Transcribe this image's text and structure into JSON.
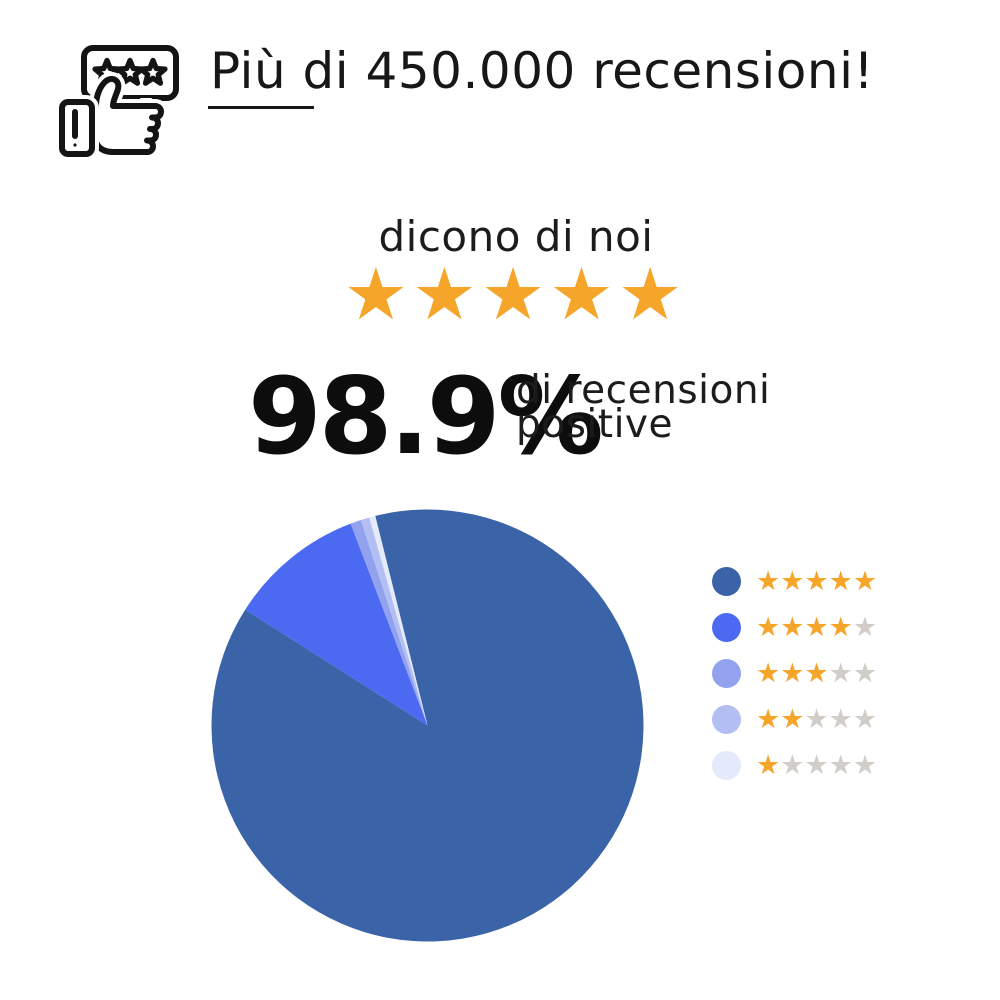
{
  "header": {
    "title": "Più di 450.000 recensioni!"
  },
  "intro": {
    "tagline": "dicono di noi",
    "stars_filled": 5,
    "stars_total": 5
  },
  "stat": {
    "value": "98.9%",
    "label_line1": "di recensioni",
    "label_line2": "positive"
  },
  "chart_data": {
    "type": "pie",
    "title": "",
    "legend_position": "right",
    "start_angle_deg": -14,
    "slices": [
      {
        "stars_filled": 5,
        "stars_total": 5,
        "value": 87.9,
        "color": "#3B63A8"
      },
      {
        "stars_filled": 4,
        "stars_total": 5,
        "value": 10.2,
        "color": "#4C69F2"
      },
      {
        "stars_filled": 3,
        "stars_total": 5,
        "value": 0.8,
        "color": "#93A2EE"
      },
      {
        "stars_filled": 2,
        "stars_total": 5,
        "value": 0.65,
        "color": "#B3BEF2"
      },
      {
        "stars_filled": 1,
        "stars_total": 5,
        "value": 0.45,
        "color": "#E4EAFB"
      }
    ]
  },
  "colors": {
    "star_filled": "#F6A52B",
    "star_empty": "#D1CDC8",
    "text": "#161616"
  },
  "icons": {
    "star_glyph": "★",
    "header_icon": "review-thumbs-up-icon"
  }
}
